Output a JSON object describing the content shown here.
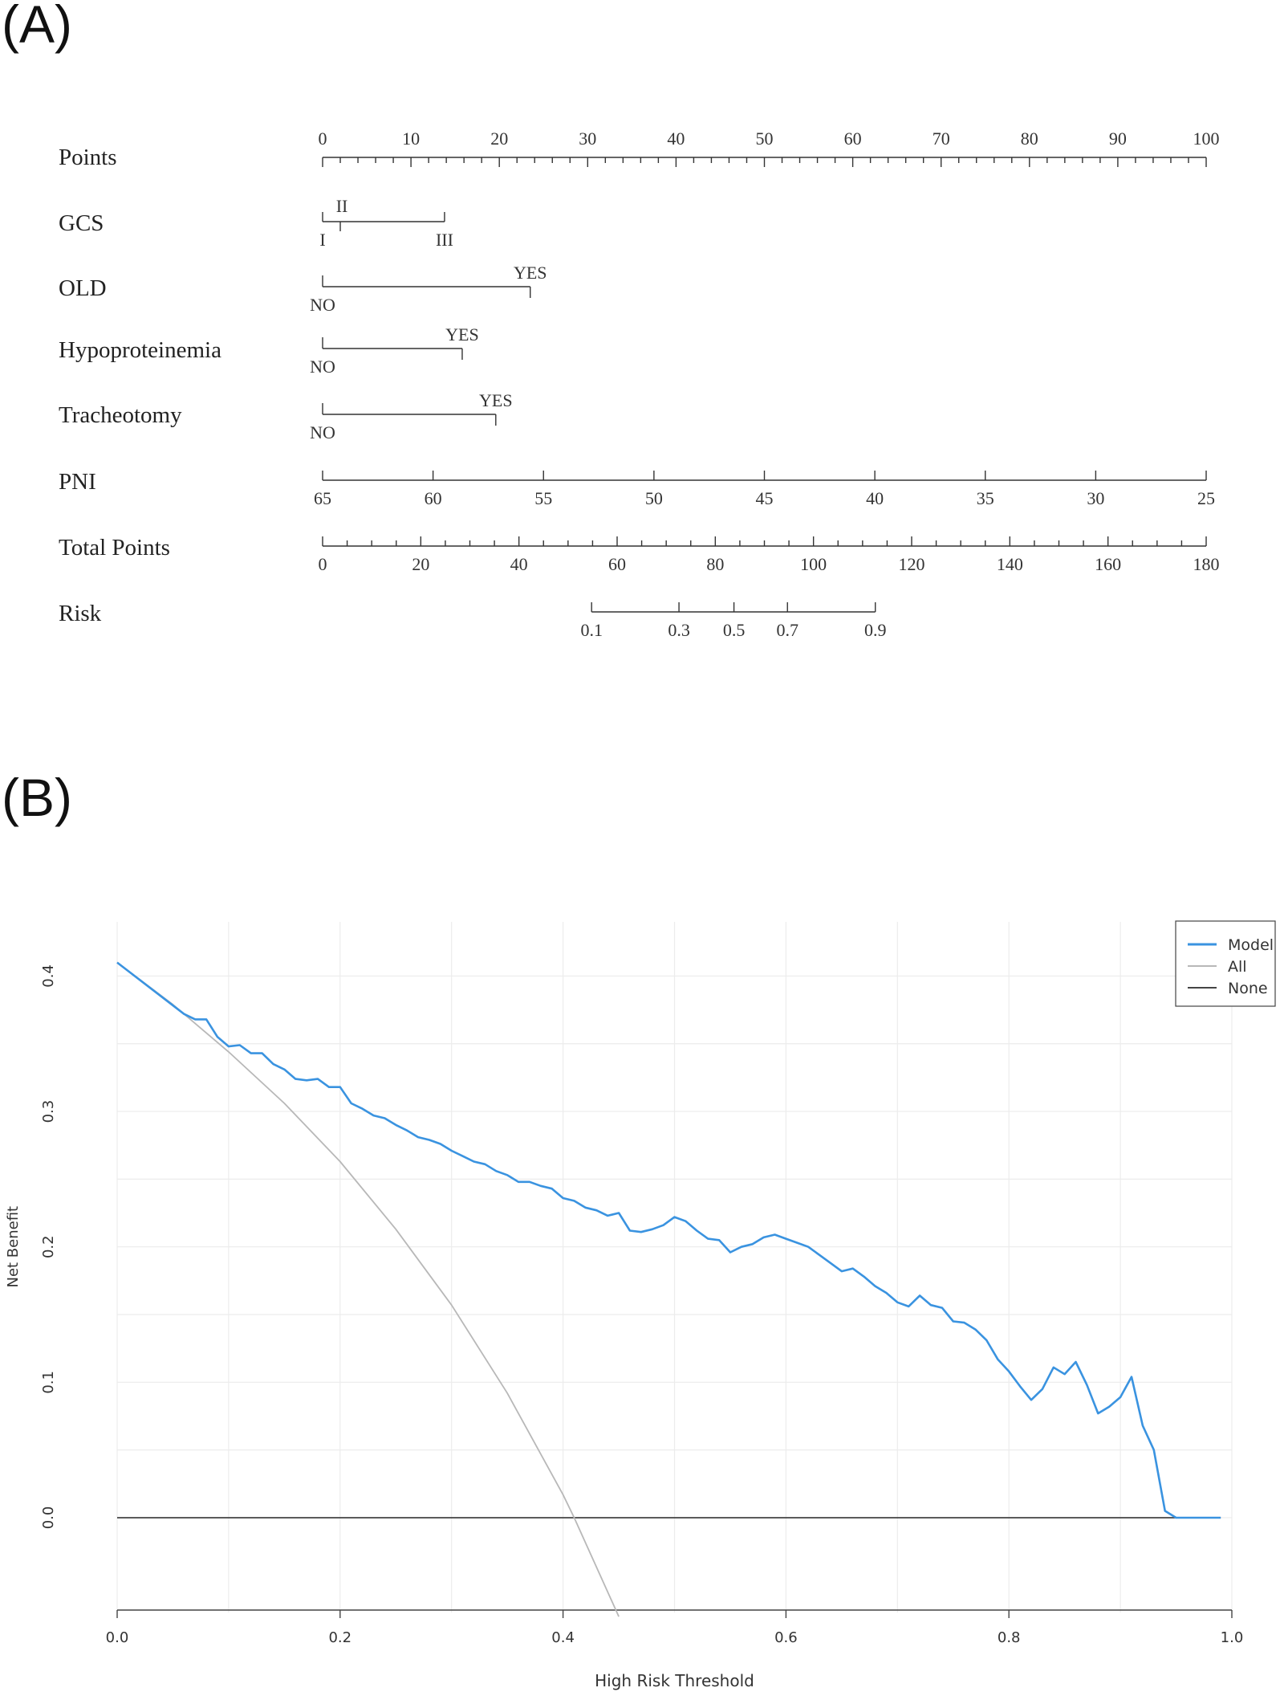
{
  "panel_a_label": "(A)",
  "panel_b_label": "(B)",
  "chart_data": [
    {
      "type": "nomogram",
      "rows": [
        {
          "name": "Points",
          "scale": {
            "from": 0,
            "to": 100
          },
          "labels": [
            "0",
            "10",
            "20",
            "30",
            "40",
            "50",
            "60",
            "70",
            "80",
            "90",
            "100"
          ]
        },
        {
          "name": "GCS",
          "levels": [
            {
              "label": "I",
              "points": 0
            },
            {
              "label": "II",
              "points": 2
            },
            {
              "label": "III",
              "points": 13.8
            }
          ]
        },
        {
          "name": "OLD",
          "levels": [
            {
              "label": "NO",
              "points": 0
            },
            {
              "label": "YES",
              "points": 23.5
            }
          ]
        },
        {
          "name": "Hypoproteinemia",
          "levels": [
            {
              "label": "NO",
              "points": 0
            },
            {
              "label": "YES",
              "points": 15.8
            }
          ]
        },
        {
          "name": "Tracheotomy",
          "levels": [
            {
              "label": "NO",
              "points": 0
            },
            {
              "label": "YES",
              "points": 19.6
            }
          ]
        },
        {
          "name": "PNI",
          "scale": {
            "from": 65,
            "to": 25
          },
          "labels": [
            "65",
            "60",
            "55",
            "50",
            "45",
            "40",
            "35",
            "30",
            "25"
          ]
        },
        {
          "name": "Total Points",
          "scale": {
            "from": 0,
            "to": 180
          },
          "labels": [
            "0",
            "20",
            "40",
            "60",
            "80",
            "100",
            "120",
            "140",
            "160",
            "180"
          ]
        },
        {
          "name": "Risk",
          "ticks": [
            {
              "label": "0.1",
              "total_points": 54.8
            },
            {
              "label": "0.3",
              "total_points": 72.6
            },
            {
              "label": "0.5",
              "total_points": 83.8
            },
            {
              "label": "0.7",
              "total_points": 94.7
            },
            {
              "label": "0.9",
              "total_points": 112.6
            }
          ]
        }
      ]
    },
    {
      "type": "line",
      "xlabel": "High Risk Threshold",
      "ylabel": "Net Benefit",
      "xlim": [
        0,
        1.0
      ],
      "ylim": [
        -0.07,
        0.44
      ],
      "x_ticks": [
        "0.0",
        "0.2",
        "0.4",
        "0.6",
        "0.8",
        "1.0"
      ],
      "y_ticks": [
        "0.0",
        "0.1",
        "0.2",
        "0.3",
        "0.4"
      ],
      "grid": true,
      "legend": "top-right",
      "series": [
        {
          "name": "Model",
          "color": "#3a93e0",
          "x": [
            0.0,
            0.06,
            0.07,
            0.08,
            0.09,
            0.1,
            0.11,
            0.12,
            0.13,
            0.14,
            0.15,
            0.16,
            0.17,
            0.18,
            0.19,
            0.2,
            0.21,
            0.22,
            0.23,
            0.24,
            0.25,
            0.26,
            0.27,
            0.28,
            0.29,
            0.3,
            0.31,
            0.32,
            0.33,
            0.34,
            0.35,
            0.36,
            0.37,
            0.38,
            0.39,
            0.4,
            0.41,
            0.42,
            0.43,
            0.44,
            0.45,
            0.46,
            0.47,
            0.48,
            0.49,
            0.5,
            0.51,
            0.52,
            0.53,
            0.54,
            0.55,
            0.56,
            0.57,
            0.58,
            0.59,
            0.6,
            0.61,
            0.62,
            0.63,
            0.64,
            0.65,
            0.66,
            0.67,
            0.68,
            0.69,
            0.7,
            0.71,
            0.72,
            0.73,
            0.74,
            0.75,
            0.76,
            0.77,
            0.78,
            0.79,
            0.8,
            0.81,
            0.82,
            0.83,
            0.84,
            0.85,
            0.86,
            0.87,
            0.88,
            0.89,
            0.9,
            0.91,
            0.92,
            0.93,
            0.94,
            0.95,
            0.96,
            0.97,
            0.98,
            0.99
          ],
          "y": [
            0.41,
            0.372,
            0.368,
            0.368,
            0.355,
            0.348,
            0.349,
            0.343,
            0.343,
            0.335,
            0.331,
            0.324,
            0.323,
            0.324,
            0.318,
            0.318,
            0.306,
            0.302,
            0.297,
            0.295,
            0.29,
            0.286,
            0.281,
            0.279,
            0.276,
            0.271,
            0.267,
            0.263,
            0.261,
            0.256,
            0.253,
            0.248,
            0.248,
            0.245,
            0.243,
            0.236,
            0.234,
            0.229,
            0.227,
            0.223,
            0.225,
            0.212,
            0.211,
            0.213,
            0.216,
            0.222,
            0.219,
            0.212,
            0.206,
            0.205,
            0.196,
            0.2,
            0.202,
            0.207,
            0.209,
            0.206,
            0.203,
            0.2,
            0.194,
            0.188,
            0.182,
            0.184,
            0.178,
            0.171,
            0.166,
            0.159,
            0.156,
            0.164,
            0.157,
            0.155,
            0.145,
            0.144,
            0.139,
            0.131,
            0.117,
            0.108,
            0.097,
            0.087,
            0.095,
            0.111,
            0.106,
            0.115,
            0.098,
            0.077,
            0.082,
            0.089,
            0.104,
            0.068,
            0.05,
            0.005,
            0.0,
            0.0,
            0.0,
            0.0,
            0.0
          ]
        },
        {
          "name": "All",
          "color": "#b8b8b8",
          "x": [
            0.0,
            0.05,
            0.1,
            0.15,
            0.2,
            0.25,
            0.3,
            0.35,
            0.4,
            0.41,
            0.45
          ],
          "y": [
            0.41,
            0.379,
            0.344,
            0.306,
            0.263,
            0.213,
            0.157,
            0.092,
            0.017,
            0.0,
            -0.073
          ]
        },
        {
          "name": "None",
          "color": "#444444",
          "x": [
            0.0,
            0.99
          ],
          "y": [
            0.0,
            0.0
          ]
        }
      ]
    }
  ]
}
